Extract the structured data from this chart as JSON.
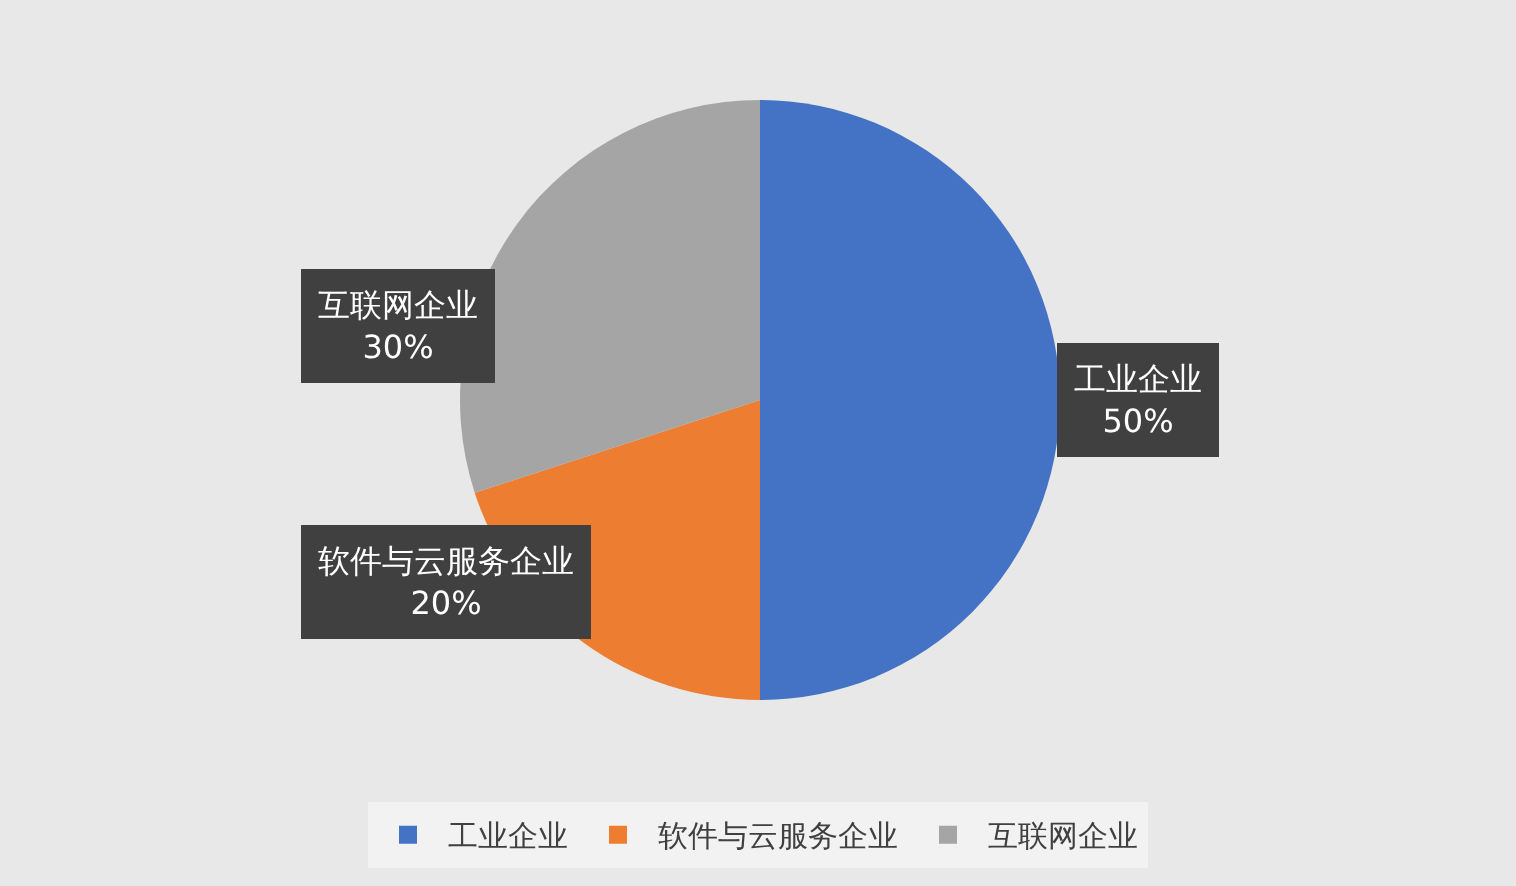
{
  "chart_data": {
    "type": "pie",
    "categories": [
      "工业企业",
      "软件与云服务企业",
      "互联网企业"
    ],
    "values": [
      50,
      20,
      30
    ],
    "colors": [
      "#4472c4",
      "#ed7d31",
      "#a5a5a5"
    ],
    "value_labels": [
      "50%",
      "20%",
      "30%"
    ],
    "legend": "bottom"
  }
}
